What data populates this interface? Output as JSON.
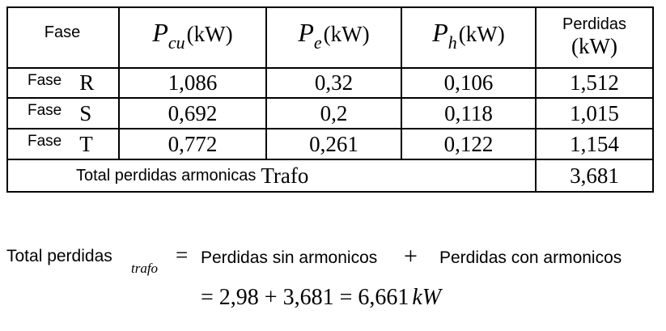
{
  "table": {
    "header": {
      "fase": "Fase",
      "columns": [
        {
          "symbol": "P",
          "subscript": "cu",
          "unit": "(kW)"
        },
        {
          "symbol": "P",
          "subscript": "e",
          "unit": "(kW)"
        },
        {
          "symbol": "P",
          "subscript": "h",
          "unit": "(kW)"
        }
      ],
      "total": {
        "line1": "Perdidas",
        "line2": "(kW)"
      }
    },
    "rows": [
      {
        "label": "Fase",
        "phase": "R",
        "values": [
          "1,086",
          "0,32",
          "0,106",
          "1,512"
        ]
      },
      {
        "label": "Fase",
        "phase": "S",
        "values": [
          "0,692",
          "0,2",
          "0,118",
          "1,015"
        ]
      },
      {
        "label": "Fase",
        "phase": "T",
        "values": [
          "0,772",
          "0,261",
          "0,122",
          "1,154"
        ]
      }
    ],
    "total_row": {
      "label": "Total perdidas armonicas",
      "suffix": "Trafo",
      "value": "3,681"
    }
  },
  "equation": {
    "lhs": "Total perdidas",
    "lhs_subscript": "trafo",
    "equals": "=",
    "term1": "Perdidas sin armonicos",
    "plus": "+",
    "term2": "Perdidas con armonicos",
    "line2": "= 2,98 + 3,681 = 6,661",
    "line2_unit": "kW"
  }
}
